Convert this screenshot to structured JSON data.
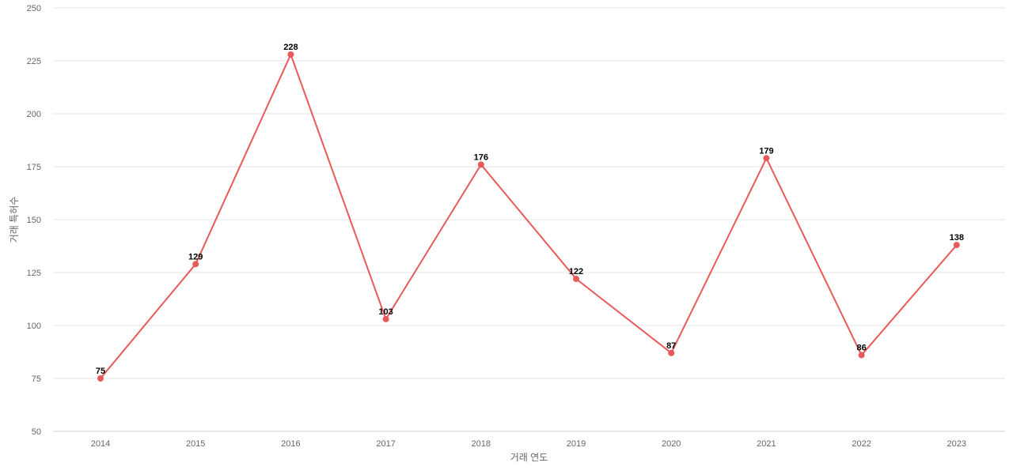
{
  "chart_data": {
    "type": "line",
    "xlabel": "거래 연도",
    "ylabel": "거래 특허수",
    "categories": [
      "2014",
      "2015",
      "2016",
      "2017",
      "2018",
      "2019",
      "2020",
      "2021",
      "2022",
      "2023"
    ],
    "series": [
      {
        "values": [
          75,
          129,
          228,
          103,
          176,
          122,
          87,
          179,
          86,
          138
        ],
        "color": "#e85a5a"
      }
    ],
    "ylim": [
      50,
      250
    ],
    "yticks": [
      "50",
      "75",
      "100",
      "125",
      "150",
      "175",
      "200",
      "225",
      "250"
    ],
    "grid": true,
    "data_labels": true,
    "legend": "none"
  }
}
